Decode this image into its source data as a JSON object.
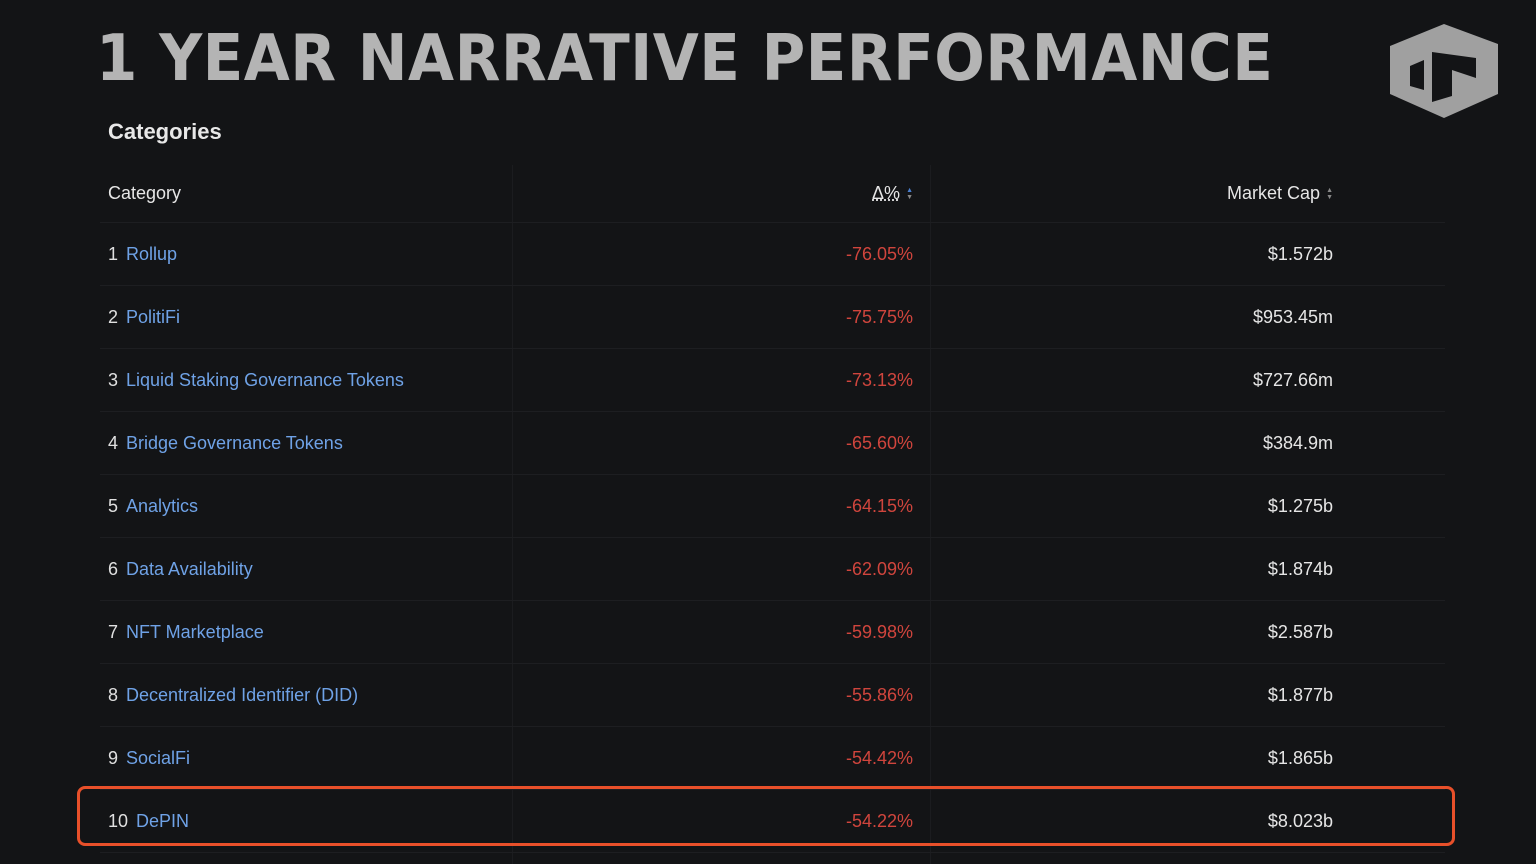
{
  "title": "1 YEAR NARRATIVE PERFORMANCE",
  "logo": {
    "icon": "cube-logo",
    "color": "#a0a0a0"
  },
  "section_title": "Categories",
  "table": {
    "headers": {
      "category": "Category",
      "delta": "Δ%",
      "market_cap": "Market Cap"
    },
    "rows": [
      {
        "rank": "1",
        "name": "Rollup",
        "delta": "-76.05%",
        "market_cap": "$1.572b"
      },
      {
        "rank": "2",
        "name": "PolitiFi",
        "delta": "-75.75%",
        "market_cap": "$953.45m"
      },
      {
        "rank": "3",
        "name": "Liquid Staking Governance Tokens",
        "delta": "-73.13%",
        "market_cap": "$727.66m"
      },
      {
        "rank": "4",
        "name": "Bridge Governance Tokens",
        "delta": "-65.60%",
        "market_cap": "$384.9m"
      },
      {
        "rank": "5",
        "name": "Analytics",
        "delta": "-64.15%",
        "market_cap": "$1.275b"
      },
      {
        "rank": "6",
        "name": "Data Availability",
        "delta": "-62.09%",
        "market_cap": "$1.874b"
      },
      {
        "rank": "7",
        "name": "NFT Marketplace",
        "delta": "-59.98%",
        "market_cap": "$2.587b"
      },
      {
        "rank": "8",
        "name": "Decentralized Identifier (DID)",
        "delta": "-55.86%",
        "market_cap": "$1.877b"
      },
      {
        "rank": "9",
        "name": "SocialFi",
        "delta": "-54.42%",
        "market_cap": "$1.865b"
      },
      {
        "rank": "10",
        "name": "DePIN",
        "delta": "-54.22%",
        "market_cap": "$8.023b"
      }
    ],
    "highlighted_rank": "10"
  },
  "colors": {
    "negative": "#d0453d",
    "link": "#6fa2e6",
    "highlight": "#e8502a",
    "background": "#131416"
  }
}
